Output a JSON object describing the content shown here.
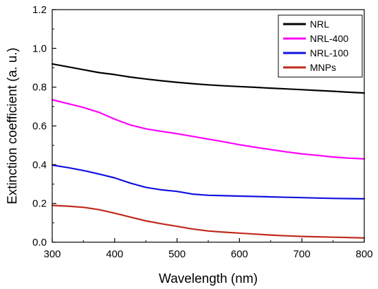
{
  "chart_data": {
    "type": "line",
    "xlabel": "Wavelength (nm)",
    "ylabel": "Extinction coefficient (a. u.)",
    "xlim": [
      300,
      800
    ],
    "ylim": [
      0.0,
      1.2
    ],
    "x_ticks": [
      "300",
      "400",
      "500",
      "600",
      "700",
      "800"
    ],
    "y_ticks": [
      "0.0",
      "0.2",
      "0.4",
      "0.6",
      "0.8",
      "1.0",
      "1.2"
    ],
    "grid": false,
    "legend_position": "top-right",
    "x": [
      300,
      325,
      350,
      375,
      400,
      425,
      450,
      475,
      500,
      525,
      550,
      575,
      600,
      625,
      650,
      675,
      700,
      725,
      750,
      775,
      800
    ],
    "series": [
      {
        "name": "NRL",
        "color": "#000000",
        "values": [
          0.92,
          0.905,
          0.89,
          0.875,
          0.865,
          0.852,
          0.842,
          0.833,
          0.825,
          0.818,
          0.812,
          0.807,
          0.803,
          0.799,
          0.795,
          0.791,
          0.787,
          0.783,
          0.779,
          0.774,
          0.77
        ]
      },
      {
        "name": "NRL-400",
        "color": "#ff00ff",
        "values": [
          0.735,
          0.715,
          0.695,
          0.67,
          0.635,
          0.605,
          0.585,
          0.572,
          0.56,
          0.546,
          0.532,
          0.518,
          0.503,
          0.49,
          0.478,
          0.466,
          0.456,
          0.448,
          0.44,
          0.434,
          0.43
        ]
      },
      {
        "name": "NRL-100",
        "color": "#1010e0",
        "values": [
          0.398,
          0.385,
          0.37,
          0.352,
          0.332,
          0.305,
          0.283,
          0.27,
          0.262,
          0.248,
          0.242,
          0.24,
          0.238,
          0.236,
          0.234,
          0.232,
          0.23,
          0.228,
          0.226,
          0.225,
          0.224
        ]
      },
      {
        "name": "MNPs",
        "color": "#c0281c",
        "values": [
          0.19,
          0.186,
          0.18,
          0.168,
          0.15,
          0.13,
          0.11,
          0.095,
          0.082,
          0.068,
          0.058,
          0.052,
          0.047,
          0.042,
          0.037,
          0.033,
          0.03,
          0.028,
          0.026,
          0.024,
          0.022
        ]
      }
    ]
  }
}
